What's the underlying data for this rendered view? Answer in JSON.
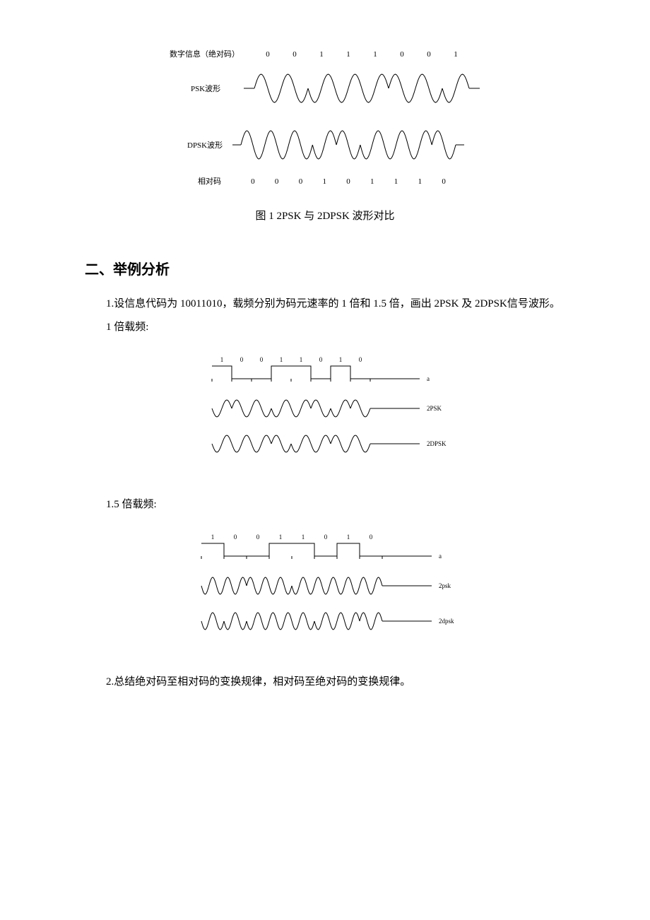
{
  "figure1": {
    "label_row1": "数字信息（绝对码）",
    "label_row2": "PSK波形",
    "label_row3": "DPSK波形",
    "label_row4": "相对码",
    "abs_bits": [
      "0",
      "0",
      "1",
      "1",
      "1",
      "0",
      "0",
      "1"
    ],
    "rel_bits": [
      "0",
      "0",
      "0",
      "1",
      "0",
      "1",
      "1",
      "1",
      "0"
    ],
    "psk_phases": [
      0,
      0,
      1,
      1,
      1,
      0,
      0,
      1
    ],
    "dpsk_phases": [
      0,
      0,
      0,
      1,
      0,
      1,
      1,
      1,
      0
    ],
    "caption": "图 1  2PSK 与 2DPSK 波形对比",
    "stroke": "#000000",
    "cycles_per_bit": 1,
    "amplitude": 20,
    "bit_width": 38
  },
  "section2": {
    "heading": "二、举例分析",
    "p1": "1.设信息代码为 10011010，载频分别为码元速率的 1 倍和 1.5 倍，画出 2PSK 及 2DPSK信号波形。",
    "label_1x": "1 倍载频:",
    "label_15x": "1.5 倍载频:",
    "p2": "2.总结绝对码至相对码的变换规律，相对码至绝对码的变换规律。"
  },
  "example1x": {
    "bits": [
      "1",
      "0",
      "0",
      "1",
      "1",
      "0",
      "1",
      "0"
    ],
    "psk_phases": [
      1,
      0,
      0,
      1,
      1,
      0,
      1,
      0
    ],
    "dpsk_phases": [
      1,
      1,
      1,
      0,
      1,
      1,
      0,
      0
    ],
    "label_a": "a",
    "label_psk": "2PSK",
    "label_dpsk": "2DPSK",
    "stroke": "#000000",
    "bit_width": 28,
    "amplitude": 12,
    "cycles_per_bit": 1
  },
  "example15x": {
    "bits": [
      "1",
      "0",
      "0",
      "1",
      "1",
      "0",
      "1",
      "0"
    ],
    "psk_phases": [
      1,
      0,
      0,
      1,
      1,
      0,
      1,
      0
    ],
    "dpsk_phases": [
      1,
      1,
      1,
      0,
      1,
      1,
      0,
      0
    ],
    "label_a": "a",
    "label_psk": "2psk",
    "label_dpsk": "2dpsk",
    "stroke": "#000000",
    "bit_width": 32,
    "amplitude": 12,
    "cycles_per_bit": 1.5
  }
}
